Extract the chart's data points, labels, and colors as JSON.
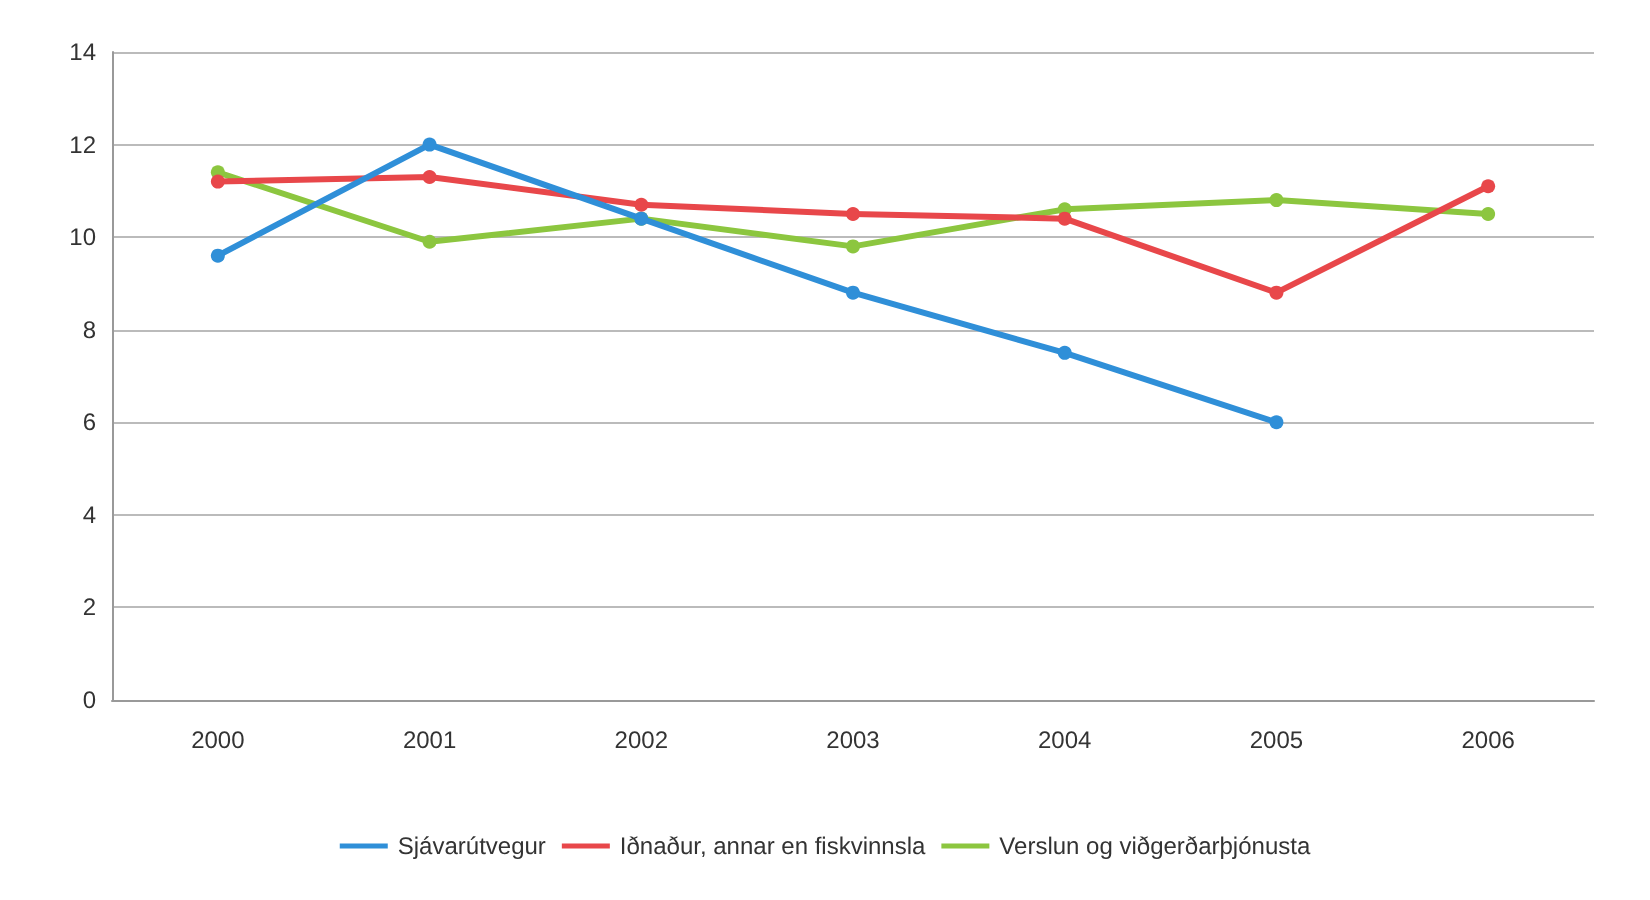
{
  "chart_data": {
    "type": "line",
    "categories": [
      "2000",
      "2001",
      "2002",
      "2003",
      "2004",
      "2005",
      "2006"
    ],
    "series": [
      {
        "name": "Sjávarútvegur",
        "color": "#2f8fd8",
        "values": [
          9.6,
          12,
          10.4,
          8.8,
          7.5,
          6.0,
          null
        ]
      },
      {
        "name": "Iðnaður, annar en fiskvinnsla",
        "color": "#e8474a",
        "values": [
          11.2,
          11.3,
          10.7,
          10.5,
          10.4,
          8.8,
          11.1
        ]
      },
      {
        "name": "Verslun og viðgerðarþjónusta",
        "color": "#8cc63f",
        "values": [
          11.4,
          9.9,
          10.4,
          9.8,
          10.6,
          10.8,
          10.5
        ]
      }
    ],
    "ylim": [
      0,
      14
    ],
    "yticks": [
      0,
      2,
      4,
      6,
      8,
      10,
      12,
      14
    ],
    "grid": "y",
    "legend": "bottom",
    "marker": "circle",
    "line_style": "solid"
  }
}
